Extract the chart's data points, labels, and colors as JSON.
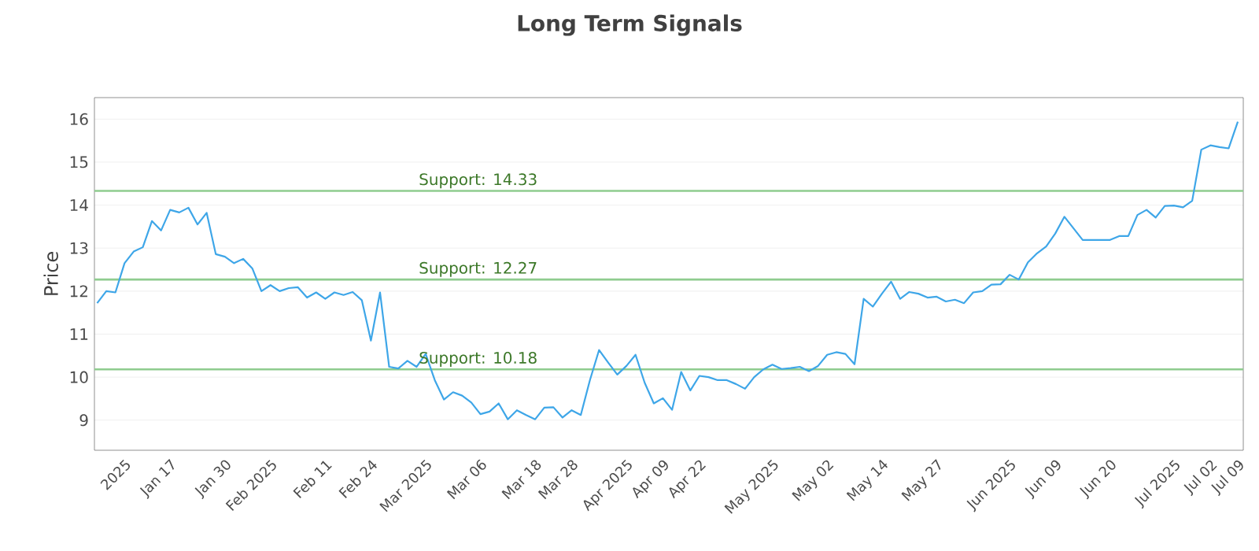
{
  "chart_data": {
    "type": "line",
    "title": "Long Term Signals",
    "ylabel": "Price",
    "categories": [
      null,
      null,
      null,
      "2025",
      null,
      null,
      null,
      null,
      "Jan 17",
      null,
      null,
      null,
      null,
      null,
      "Jan 30",
      null,
      null,
      null,
      null,
      "Feb 2025",
      null,
      null,
      null,
      null,
      null,
      "Feb 11",
      null,
      null,
      null,
      null,
      "Feb 24",
      null,
      null,
      null,
      null,
      null,
      "Mar 2025",
      null,
      null,
      null,
      null,
      null,
      "Mar 06",
      null,
      null,
      null,
      null,
      null,
      "Mar 18",
      null,
      null,
      null,
      "Mar 28",
      null,
      null,
      null,
      null,
      null,
      "Apr 2025",
      null,
      null,
      null,
      "Apr 09",
      null,
      null,
      null,
      "Apr 22",
      null,
      null,
      null,
      null,
      null,
      null,
      null,
      "May 2025",
      null,
      null,
      null,
      null,
      null,
      "May 02",
      null,
      null,
      null,
      null,
      null,
      "May 14",
      null,
      null,
      null,
      null,
      null,
      "May 27",
      null,
      null,
      null,
      null,
      null,
      null,
      null,
      "Jun 2025",
      null,
      null,
      null,
      null,
      "Jun 09",
      null,
      null,
      null,
      null,
      null,
      "Jun 20",
      null,
      null,
      null,
      null,
      null,
      null,
      "Jul 2025",
      null,
      null,
      null,
      "Jul 02",
      null,
      null,
      "Jul 09"
    ],
    "series": [
      {
        "color": "#3ea6e8",
        "values": [
          11.72,
          12.0,
          11.97,
          12.65,
          12.92,
          13.02,
          13.63,
          13.41,
          13.89,
          13.83,
          13.94,
          13.55,
          13.82,
          12.86,
          12.8,
          12.65,
          12.75,
          12.53,
          12.0,
          12.14,
          12.0,
          12.07,
          12.09,
          11.85,
          11.97,
          11.82,
          11.97,
          11.91,
          11.98,
          11.79,
          10.85,
          11.97,
          10.24,
          10.2,
          10.38,
          10.24,
          10.54,
          9.93,
          9.48,
          9.65,
          9.57,
          9.41,
          9.14,
          9.2,
          9.39,
          9.02,
          9.23,
          9.12,
          9.02,
          9.29,
          9.3,
          9.06,
          9.23,
          9.12,
          9.93,
          10.63,
          10.34,
          10.06,
          10.26,
          10.52,
          9.87,
          9.39,
          9.51,
          9.24,
          10.12,
          9.69,
          10.03,
          10.0,
          9.93,
          9.93,
          9.84,
          9.73,
          10.0,
          10.18,
          10.29,
          10.19,
          10.21,
          10.24,
          10.14,
          10.26,
          10.52,
          10.58,
          10.54,
          10.3,
          11.82,
          11.64,
          11.94,
          12.22,
          11.82,
          11.98,
          11.94,
          11.85,
          11.87,
          11.76,
          11.8,
          11.72,
          11.97,
          12.0,
          12.15,
          12.16,
          12.38,
          12.27,
          12.67,
          12.88,
          13.04,
          13.34,
          13.73,
          13.46,
          13.19,
          13.19,
          13.19,
          13.19,
          13.28,
          13.28,
          13.77,
          13.89,
          13.71,
          13.98,
          13.99,
          13.95,
          14.1,
          15.29,
          15.39,
          15.35,
          15.32,
          15.94
        ]
      }
    ],
    "ylim": [
      8.3,
      16.5
    ],
    "yticks": [
      9,
      10,
      11,
      12,
      13,
      14,
      15,
      16
    ],
    "grid": "y",
    "marker": "none",
    "line_style": "solid",
    "ref_lines": [
      {
        "axis": "y",
        "value": 14.33,
        "label": "Support: 14.33",
        "color": "#8fcc8f"
      },
      {
        "axis": "y",
        "value": 12.27,
        "label": "Support: 12.27",
        "color": "#8fcc8f"
      },
      {
        "axis": "y",
        "value": 10.18,
        "label": "Support: 10.18",
        "color": "#8fcc8f"
      }
    ]
  }
}
